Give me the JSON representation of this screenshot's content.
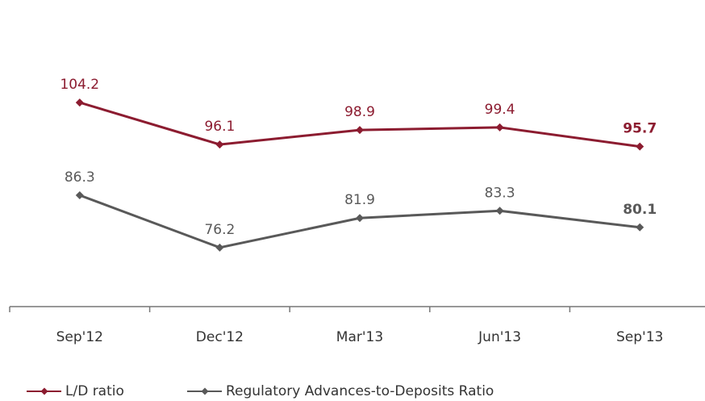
{
  "chart_data": {
    "type": "line",
    "categories": [
      "Sep'12",
      "Dec'12",
      "Mar'13",
      "Jun'13",
      "Sep'13"
    ],
    "series": [
      {
        "name": "L/D ratio",
        "color": "#8c1c30",
        "values": [
          104.2,
          96.1,
          98.9,
          99.4,
          95.7
        ]
      },
      {
        "name": "Regulatory Advances-to-Deposits Ratio",
        "color": "#595959",
        "values": [
          86.3,
          76.2,
          81.9,
          83.3,
          80.1
        ]
      }
    ],
    "ylim": [
      64.8,
      124
    ],
    "legend": "bottom-left"
  }
}
